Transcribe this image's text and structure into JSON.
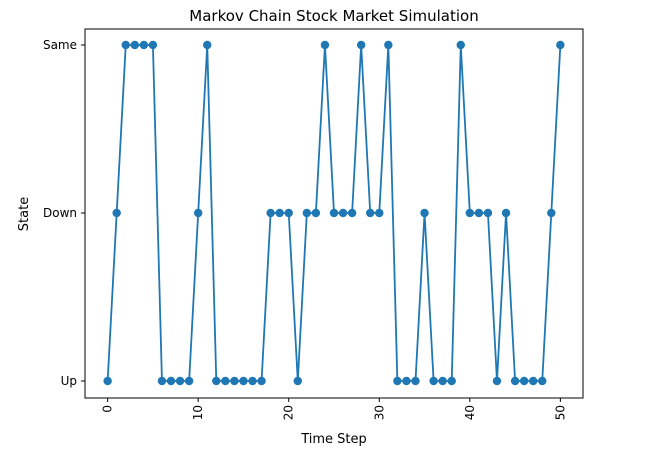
{
  "chart_data": {
    "type": "line",
    "title": "Markov Chain Stock Market Simulation",
    "xlabel": "Time Step",
    "ylabel": "State",
    "categories": [
      "Up",
      "Down",
      "Same"
    ],
    "xlim": [
      -2.5,
      52.5
    ],
    "xticks": [
      0,
      10,
      20,
      30,
      40,
      50
    ],
    "grid": false,
    "legend": "none",
    "series": [
      {
        "color": "#1f77b4",
        "marker": "circle",
        "x": [
          0,
          1,
          2,
          3,
          4,
          5,
          6,
          7,
          8,
          9,
          10,
          11,
          12,
          13,
          14,
          15,
          16,
          17,
          18,
          19,
          20,
          21,
          22,
          23,
          24,
          25,
          26,
          27,
          28,
          29,
          30,
          31,
          32,
          33,
          34,
          35,
          36,
          37,
          38,
          39,
          40,
          41,
          42,
          43,
          44,
          45,
          46,
          47,
          48,
          49,
          50
        ],
        "values": [
          "Up",
          "Down",
          "Same",
          "Same",
          "Same",
          "Same",
          "Up",
          "Up",
          "Up",
          "Up",
          "Down",
          "Same",
          "Up",
          "Up",
          "Up",
          "Up",
          "Up",
          "Up",
          "Down",
          "Down",
          "Down",
          "Up",
          "Down",
          "Down",
          "Same",
          "Down",
          "Down",
          "Down",
          "Same",
          "Down",
          "Down",
          "Same",
          "Up",
          "Up",
          "Up",
          "Down",
          "Up",
          "Up",
          "Up",
          "Same",
          "Down",
          "Down",
          "Down",
          "Up",
          "Down",
          "Up",
          "Up",
          "Up",
          "Up",
          "Down",
          "Same"
        ]
      }
    ]
  }
}
